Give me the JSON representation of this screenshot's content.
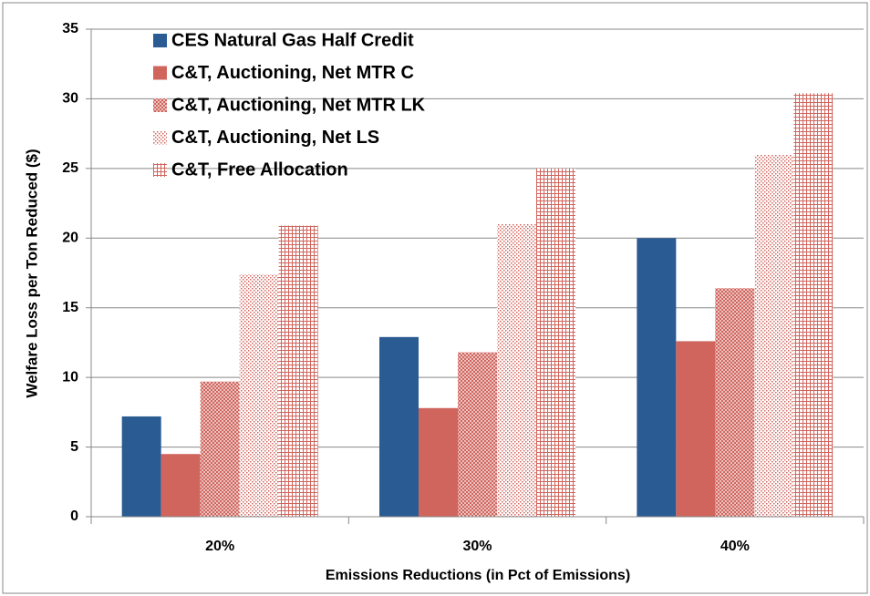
{
  "chart_data": {
    "type": "bar",
    "y_label": "Welfare Loss per Ton Reduced ($)",
    "x_label": "Emissions Reductions (in Pct of Emissions)",
    "categories": [
      "20%",
      "30%",
      "40%"
    ],
    "series": [
      {
        "name": "CES Natural Gas Half Credit",
        "color": "#2a5b92",
        "pattern": "solid",
        "values": [
          7.2,
          12.9,
          20.0
        ]
      },
      {
        "name": "C&T, Auctioning, Net MTR C",
        "color": "#d0655d",
        "pattern": "solid",
        "values": [
          4.5,
          7.8,
          12.6
        ]
      },
      {
        "name": "C&T, Auctioning, Net MTR LK",
        "color": "#d0655d",
        "pattern": "crosshatch",
        "values": [
          9.7,
          11.8,
          16.4
        ]
      },
      {
        "name": "C&T, Auctioning, Net LS",
        "color": "#d0655d",
        "pattern": "dots",
        "values": [
          17.4,
          21.0,
          26.0
        ]
      },
      {
        "name": "C&T, Free Allocation",
        "color": "#d0655d",
        "pattern": "grid",
        "values": [
          20.9,
          25.0,
          30.4
        ]
      }
    ],
    "ylim": [
      0,
      35
    ],
    "yticks": [
      0,
      5,
      10,
      15,
      20,
      25,
      30,
      35
    ],
    "grid": true,
    "legend": "top-left"
  }
}
